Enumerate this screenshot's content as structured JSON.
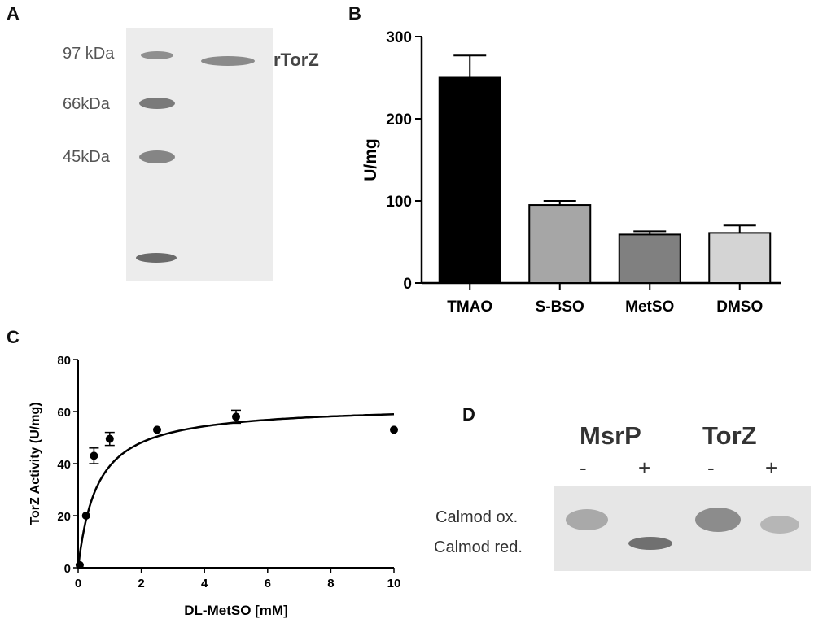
{
  "panels": {
    "a": "A",
    "b": "B",
    "c": "C",
    "d": "D"
  },
  "panel_a": {
    "markers": [
      "97 kDa",
      "66kDa",
      "45kDa"
    ],
    "protein_label": "rTorZ"
  },
  "panel_d": {
    "lanes": [
      "MsrP",
      "TorZ"
    ],
    "signs": [
      "-",
      "+",
      "-",
      "+"
    ],
    "band_labels": [
      "Calmod ox.",
      "Calmod red."
    ]
  },
  "chart_data": [
    {
      "type": "bar",
      "panel": "B",
      "categories": [
        "TMAO",
        "S-BSO",
        "MetSO",
        "DMSO"
      ],
      "values": [
        250,
        95,
        59,
        61
      ],
      "errors": [
        27,
        5,
        4,
        9
      ],
      "colors": [
        "#000000",
        "#a6a6a6",
        "#808080",
        "#d4d4d4"
      ],
      "ylabel": "U/mg",
      "ylim": [
        0,
        300
      ],
      "yticks": [
        0,
        100,
        200,
        300
      ]
    },
    {
      "type": "scatter",
      "panel": "C",
      "x": [
        0.05,
        0.25,
        0.5,
        1.0,
        2.5,
        5.0,
        10.0
      ],
      "y": [
        1,
        20,
        43,
        49.5,
        53,
        58,
        53
      ],
      "errors": [
        0,
        0,
        3,
        2.5,
        0,
        2.5,
        0
      ],
      "fit": {
        "model": "Michaelis-Menten",
        "vmax": 62.5,
        "km": 0.6
      },
      "xlabel": "DL-MetSO [mM]",
      "ylabel": "TorZ Activity (U/mg)",
      "xlim": [
        0,
        10
      ],
      "ylim": [
        0,
        80
      ],
      "xticks": [
        0,
        2,
        4,
        6,
        8,
        10
      ],
      "yticks": [
        0,
        20,
        40,
        60,
        80
      ]
    }
  ]
}
